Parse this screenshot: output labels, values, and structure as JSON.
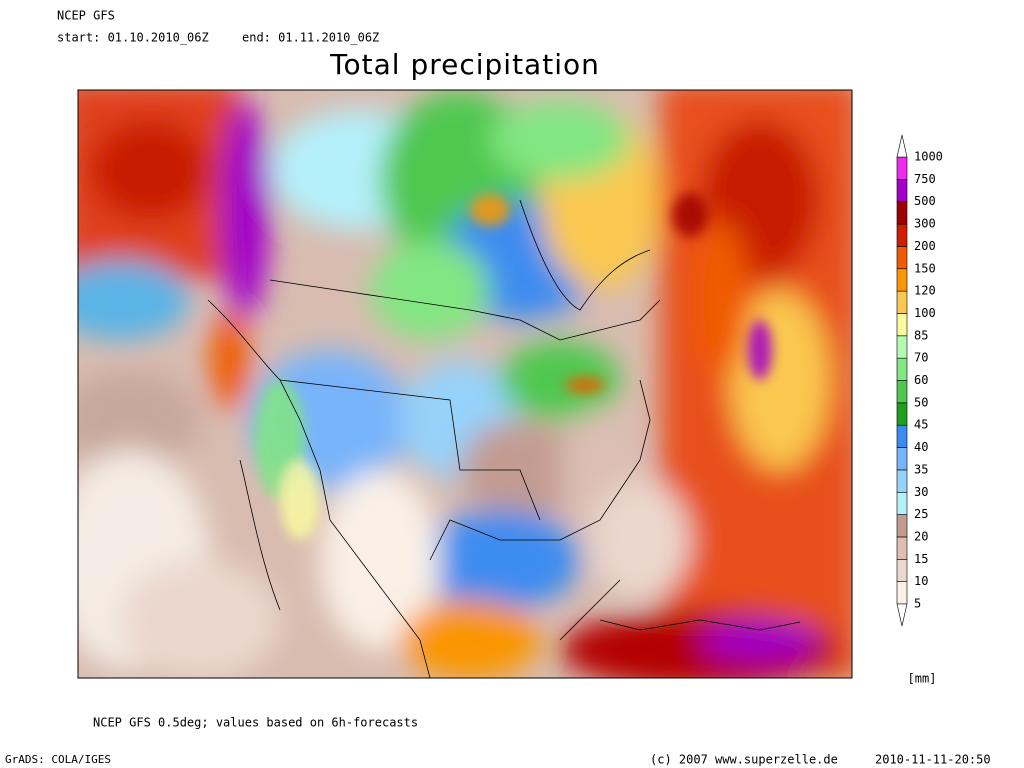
{
  "header": {
    "model": "NCEP GFS",
    "start": "start: 01.10.2010_06Z",
    "end": "end: 01.11.2010_06Z",
    "title": "Total precipitation"
  },
  "legend": {
    "unit": "[mm]",
    "levels": [
      5,
      10,
      15,
      20,
      25,
      30,
      35,
      40,
      45,
      50,
      60,
      70,
      85,
      100,
      120,
      150,
      200,
      300,
      500,
      750,
      1000
    ],
    "colors": [
      "#faf0e6",
      "#ebd7cd",
      "#dcbeb4",
      "#c39b91",
      "#b4f0fa",
      "#96d2fa",
      "#78b4fa",
      "#3c8cf0",
      "#1ea01e",
      "#50c850",
      "#82e682",
      "#b4fab4",
      "#fafaa0",
      "#fac850",
      "#fa9600",
      "#f05a00",
      "#d21e00",
      "#a00000",
      "#a000c8",
      "#f028f0"
    ]
  },
  "footer": {
    "note": "NCEP GFS 0.5deg; values based on 6h-forecasts",
    "software": "GrADS: COLA/IGES",
    "copyright": "(c) 2007 www.superzelle.de",
    "timestamp": "2010-11-11-20:50"
  }
}
